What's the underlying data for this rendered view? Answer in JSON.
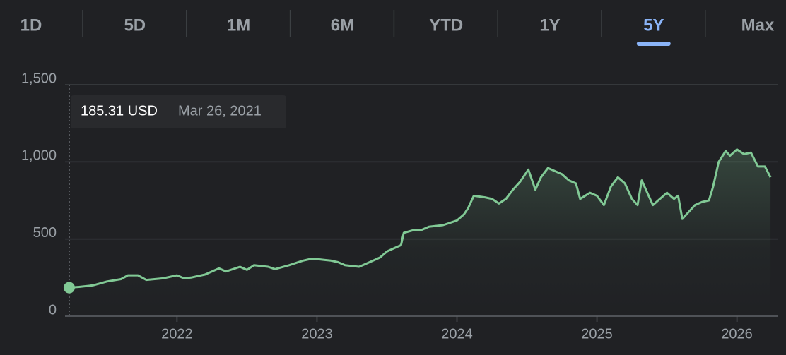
{
  "tabs": [
    "1D",
    "5D",
    "1M",
    "6M",
    "YTD",
    "1Y",
    "5Y",
    "Max"
  ],
  "active_tab": 6,
  "chart_data": {
    "type": "line",
    "tooltip": {
      "value_label": "185.31 USD",
      "date": "Mar 26, 2021"
    },
    "color": "#81c995",
    "x": [
      2021.23,
      2021.3,
      2021.4,
      2021.5,
      2021.6,
      2021.65,
      2021.72,
      2021.78,
      2021.9,
      2022.0,
      2022.05,
      2022.1,
      2022.2,
      2022.25,
      2022.3,
      2022.35,
      2022.45,
      2022.5,
      2022.55,
      2022.65,
      2022.7,
      2022.8,
      2022.9,
      2022.95,
      2023.0,
      2023.05,
      2023.1,
      2023.15,
      2023.2,
      2023.3,
      2023.35,
      2023.45,
      2023.5,
      2023.55,
      2023.6,
      2023.62,
      2023.7,
      2023.75,
      2023.8,
      2023.9,
      2024.0,
      2024.05,
      2024.08,
      2024.12,
      2024.2,
      2024.25,
      2024.3,
      2024.35,
      2024.4,
      2024.45,
      2024.51,
      2024.56,
      2024.6,
      2024.65,
      2024.75,
      2024.8,
      2024.85,
      2024.88,
      2024.95,
      2025.0,
      2025.05,
      2025.1,
      2025.15,
      2025.2,
      2025.25,
      2025.29,
      2025.32,
      2025.4,
      2025.45,
      2025.5,
      2025.55,
      2025.58,
      2025.61,
      2025.7,
      2025.75,
      2025.8,
      2025.83,
      2025.87,
      2025.92,
      2025.95,
      2026.0,
      2026.05,
      2026.1,
      2026.15,
      2026.2,
      2026.24
    ],
    "values": [
      185,
      190,
      200,
      225,
      240,
      265,
      265,
      235,
      245,
      265,
      245,
      250,
      270,
      290,
      310,
      290,
      320,
      300,
      330,
      320,
      305,
      330,
      360,
      370,
      370,
      365,
      360,
      350,
      330,
      320,
      340,
      380,
      420,
      440,
      460,
      540,
      560,
      560,
      580,
      590,
      620,
      660,
      700,
      780,
      770,
      760,
      730,
      760,
      820,
      870,
      950,
      820,
      900,
      960,
      920,
      880,
      860,
      760,
      800,
      780,
      720,
      840,
      900,
      860,
      760,
      720,
      880,
      720,
      760,
      800,
      760,
      780,
      630,
      720,
      740,
      750,
      840,
      1000,
      1070,
      1040,
      1080,
      1050,
      1060,
      970,
      970,
      900
    ],
    "xlim": [
      2021.2,
      2026.29
    ],
    "xticks": [
      2022,
      2023,
      2024,
      2025,
      2026
    ],
    "ylim": [
      0,
      1500
    ],
    "yticks": [
      0,
      500,
      {
        "value": 1000,
        "label": "1,000"
      },
      {
        "value": 1500,
        "label": "1,500"
      }
    ],
    "grid": true
  }
}
